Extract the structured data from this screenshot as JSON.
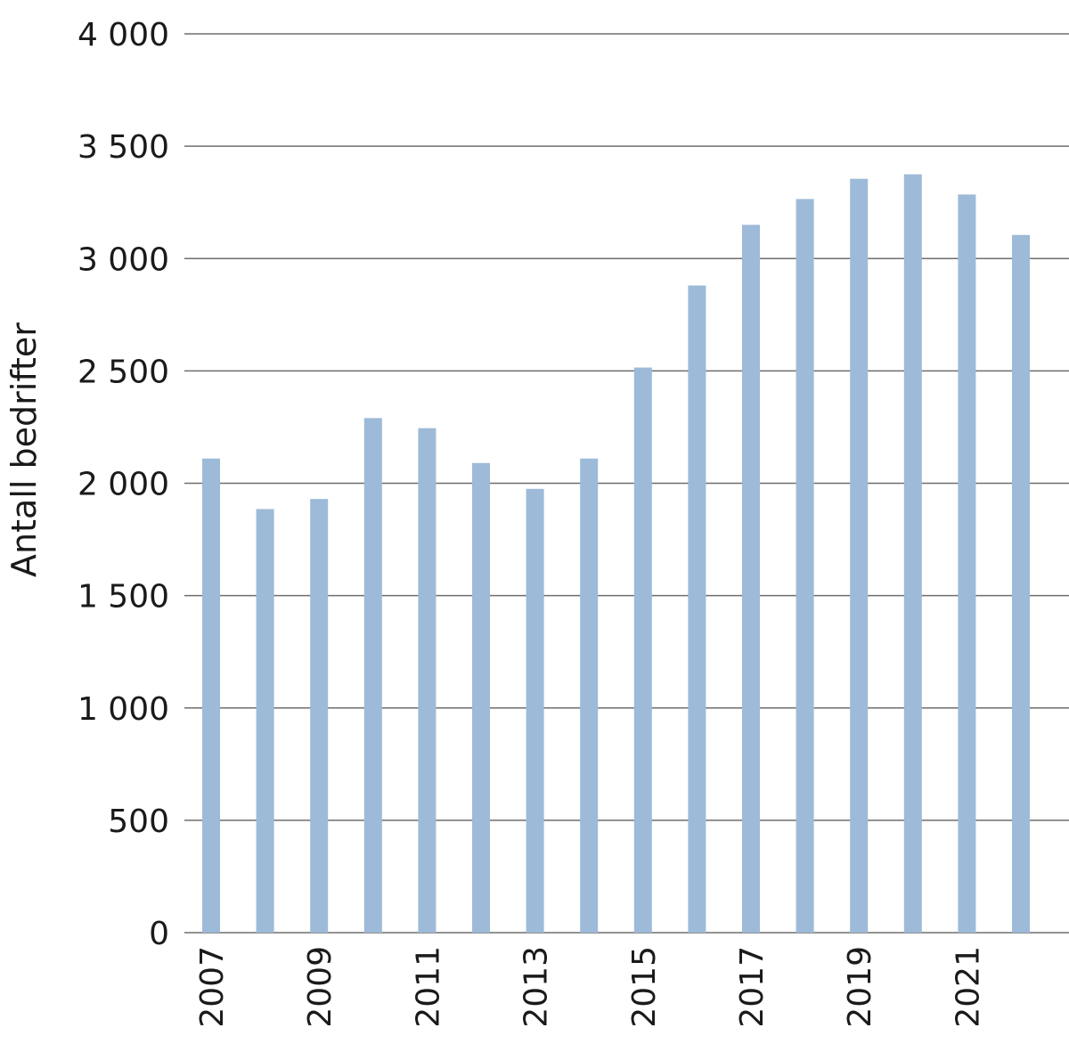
{
  "chart_data": {
    "type": "bar",
    "title": "",
    "xlabel": "",
    "ylabel": "Antall bedrifter",
    "categories": [
      "2007",
      "2008",
      "2009",
      "2010",
      "2011",
      "2012",
      "2013",
      "2014",
      "2015",
      "2016",
      "2017",
      "2018",
      "2019",
      "2020",
      "2021",
      "2022"
    ],
    "x_tick_labels": [
      "2007",
      "2009",
      "2011",
      "2013",
      "2015",
      "2017",
      "2019",
      "2021"
    ],
    "values": [
      2110,
      1885,
      1930,
      2290,
      2245,
      2090,
      1975,
      2110,
      2515,
      2880,
      3150,
      3265,
      3355,
      3375,
      3285,
      3105
    ],
    "ylim": [
      0,
      4000
    ],
    "y_ticks": [
      0,
      500,
      1000,
      1500,
      2000,
      2500,
      3000,
      3500,
      4000
    ],
    "y_tick_labels": [
      "0",
      "500",
      "1 000",
      "1 500",
      "2 000",
      "2 500",
      "3 000",
      "3 500",
      "4 000"
    ],
    "grid": true,
    "legend": "none",
    "bar_color": "#9dbad8",
    "grid_color": "#6e6e6e"
  }
}
